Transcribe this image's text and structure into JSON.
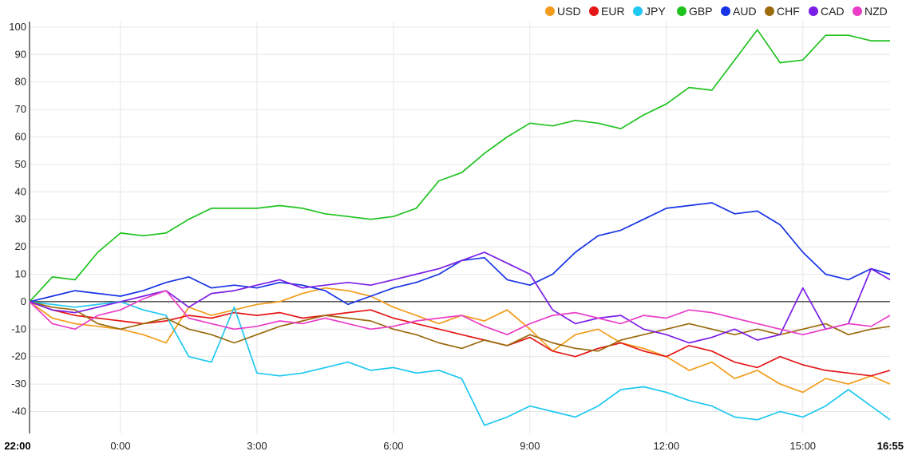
{
  "chart_data": {
    "type": "line",
    "title": "",
    "xlabel": "",
    "ylabel": "",
    "ylim": [
      -48,
      102
    ],
    "x_ticks": [
      {
        "label": "22:00",
        "pos": 0,
        "bold": true
      },
      {
        "label": "0:00",
        "pos": 2,
        "bold": false
      },
      {
        "label": "3:00",
        "pos": 5,
        "bold": false
      },
      {
        "label": "6:00",
        "pos": 8,
        "bold": false
      },
      {
        "label": "9:00",
        "pos": 11,
        "bold": false
      },
      {
        "label": "12:00",
        "pos": 14,
        "bold": false
      },
      {
        "label": "15:00",
        "pos": 17,
        "bold": false
      },
      {
        "label": "16:55",
        "pos": 18.9167,
        "bold": true
      }
    ],
    "y_ticks": [
      100,
      90,
      80,
      70,
      60,
      50,
      40,
      30,
      20,
      10,
      0,
      -10,
      -20,
      -30,
      -40
    ],
    "grid": true,
    "legend_position": "top-right",
    "series": [
      {
        "name": "USD",
        "color": "#f39c1b",
        "x": [
          0,
          0.5,
          1,
          1.5,
          2,
          2.5,
          3,
          3.5,
          4,
          4.5,
          5,
          5.5,
          6,
          6.5,
          7,
          7.5,
          8,
          8.5,
          9,
          9.5,
          10,
          10.5,
          11,
          11.5,
          12,
          12.5,
          13,
          13.5,
          14,
          14.5,
          15,
          15.5,
          16,
          16.5,
          17,
          17.5,
          18,
          18.5,
          18.9167
        ],
        "values": [
          0,
          -6,
          -8,
          -9,
          -10,
          -12,
          -15,
          -2,
          -5,
          -3,
          -1,
          0,
          3,
          5,
          4,
          2,
          -2,
          -5,
          -8,
          -5,
          -7,
          -3,
          -10,
          -18,
          -12,
          -10,
          -15,
          -17,
          -20,
          -25,
          -22,
          -28,
          -25,
          -30,
          -33,
          -28,
          -30,
          -27,
          -30
        ]
      },
      {
        "name": "EUR",
        "color": "#e61717",
        "x": [
          0,
          0.5,
          1,
          1.5,
          2,
          2.5,
          3,
          3.5,
          4,
          4.5,
          5,
          5.5,
          6,
          6.5,
          7,
          7.5,
          8,
          8.5,
          9,
          9.5,
          10,
          10.5,
          11,
          11.5,
          12,
          12.5,
          13,
          13.5,
          14,
          14.5,
          15,
          15.5,
          16,
          16.5,
          17,
          17.5,
          18,
          18.5,
          18.9167
        ],
        "values": [
          0,
          -3,
          -5,
          -6,
          -7,
          -8,
          -7,
          -5,
          -6,
          -4,
          -5,
          -4,
          -6,
          -5,
          -4,
          -3,
          -6,
          -8,
          -10,
          -12,
          -14,
          -16,
          -13,
          -18,
          -20,
          -17,
          -15,
          -18,
          -20,
          -16,
          -18,
          -22,
          -24,
          -20,
          -23,
          -25,
          -26,
          -27,
          -25
        ]
      },
      {
        "name": "JPY",
        "color": "#1ec8f0",
        "x": [
          0,
          0.5,
          1,
          1.5,
          2,
          2.5,
          3,
          3.5,
          4,
          4.5,
          5,
          5.5,
          6,
          6.5,
          7,
          7.5,
          8,
          8.5,
          9,
          9.5,
          10,
          10.5,
          11,
          11.5,
          12,
          12.5,
          13,
          13.5,
          14,
          14.5,
          15,
          15.5,
          16,
          16.5,
          17,
          17.5,
          18,
          18.5,
          18.9167
        ],
        "values": [
          0,
          -1,
          -2,
          -1,
          0,
          -3,
          -5,
          -20,
          -22,
          -2,
          -26,
          -27,
          -26,
          -24,
          -22,
          -25,
          -24,
          -26,
          -25,
          -28,
          -45,
          -42,
          -38,
          -40,
          -42,
          -38,
          -32,
          -31,
          -33,
          -36,
          -38,
          -42,
          -43,
          -40,
          -42,
          -38,
          -32,
          -38,
          -43
        ]
      },
      {
        "name": "GBP",
        "color": "#1fc31f",
        "x": [
          0,
          0.5,
          1,
          1.5,
          2,
          2.5,
          3,
          3.5,
          4,
          4.5,
          5,
          5.5,
          6,
          6.5,
          7,
          7.5,
          8,
          8.5,
          9,
          9.5,
          10,
          10.5,
          11,
          11.5,
          12,
          12.5,
          13,
          13.5,
          14,
          14.5,
          15,
          15.5,
          16,
          16.5,
          17,
          17.5,
          18,
          18.5,
          18.9167
        ],
        "values": [
          0,
          9,
          8,
          18,
          25,
          24,
          25,
          30,
          34,
          34,
          34,
          35,
          34,
          32,
          31,
          30,
          31,
          34,
          44,
          47,
          54,
          60,
          65,
          64,
          66,
          65,
          63,
          68,
          72,
          78,
          77,
          88,
          99,
          87,
          88,
          97,
          97,
          95,
          95
        ]
      },
      {
        "name": "AUD",
        "color": "#1733e6",
        "x": [
          0,
          0.5,
          1,
          1.5,
          2,
          2.5,
          3,
          3.5,
          4,
          4.5,
          5,
          5.5,
          6,
          6.5,
          7,
          7.5,
          8,
          8.5,
          9,
          9.5,
          10,
          10.5,
          11,
          11.5,
          12,
          12.5,
          13,
          13.5,
          14,
          14.5,
          15,
          15.5,
          16,
          16.5,
          17,
          17.5,
          18,
          18.5,
          18.9167
        ],
        "values": [
          0,
          2,
          4,
          3,
          2,
          4,
          7,
          9,
          5,
          6,
          5,
          7,
          6,
          4,
          -1,
          2,
          5,
          7,
          10,
          15,
          16,
          8,
          6,
          10,
          18,
          24,
          26,
          30,
          34,
          35,
          36,
          32,
          33,
          28,
          18,
          10,
          8,
          12,
          10
        ]
      },
      {
        "name": "CHF",
        "color": "#9b6b0e",
        "x": [
          0,
          0.5,
          1,
          1.5,
          2,
          2.5,
          3,
          3.5,
          4,
          4.5,
          5,
          5.5,
          6,
          6.5,
          7,
          7.5,
          8,
          8.5,
          9,
          9.5,
          10,
          10.5,
          11,
          11.5,
          12,
          12.5,
          13,
          13.5,
          14,
          14.5,
          15,
          15.5,
          16,
          16.5,
          17,
          17.5,
          18,
          18.5,
          18.9167
        ],
        "values": [
          0,
          -2,
          -3,
          -8,
          -10,
          -8,
          -6,
          -10,
          -12,
          -15,
          -12,
          -9,
          -7,
          -5,
          -6,
          -7,
          -10,
          -12,
          -15,
          -17,
          -14,
          -16,
          -12,
          -15,
          -17,
          -18,
          -14,
          -12,
          -10,
          -8,
          -10,
          -12,
          -10,
          -12,
          -10,
          -8,
          -12,
          -10,
          -9
        ]
      },
      {
        "name": "CAD",
        "color": "#7b1fe6",
        "x": [
          0,
          0.5,
          1,
          1.5,
          2,
          2.5,
          3,
          3.5,
          4,
          4.5,
          5,
          5.5,
          6,
          6.5,
          7,
          7.5,
          8,
          8.5,
          9,
          9.5,
          10,
          10.5,
          11,
          11.5,
          12,
          12.5,
          13,
          13.5,
          14,
          14.5,
          15,
          15.5,
          16,
          16.5,
          17,
          17.5,
          18,
          18.5,
          18.9167
        ],
        "values": [
          0,
          -3,
          -4,
          -2,
          0,
          2,
          4,
          -2,
          3,
          4,
          6,
          8,
          5,
          6,
          7,
          6,
          8,
          10,
          12,
          15,
          18,
          14,
          10,
          -3,
          -8,
          -6,
          -5,
          -10,
          -12,
          -15,
          -13,
          -10,
          -14,
          -12,
          5,
          -10,
          -8,
          12,
          8
        ]
      },
      {
        "name": "NZD",
        "color": "#eb3ec8",
        "x": [
          0,
          0.5,
          1,
          1.5,
          2,
          2.5,
          3,
          3.5,
          4,
          4.5,
          5,
          5.5,
          6,
          6.5,
          7,
          7.5,
          8,
          8.5,
          9,
          9.5,
          10,
          10.5,
          11,
          11.5,
          12,
          12.5,
          13,
          13.5,
          14,
          14.5,
          15,
          15.5,
          16,
          16.5,
          17,
          17.5,
          18,
          18.5,
          18.9167
        ],
        "values": [
          0,
          -8,
          -10,
          -5,
          -3,
          1,
          4,
          -6,
          -8,
          -10,
          -9,
          -7,
          -8,
          -6,
          -8,
          -10,
          -9,
          -7,
          -6,
          -5,
          -9,
          -12,
          -8,
          -5,
          -4,
          -6,
          -8,
          -5,
          -6,
          -3,
          -4,
          -6,
          -8,
          -10,
          -12,
          -10,
          -8,
          -9,
          -5
        ]
      }
    ]
  }
}
